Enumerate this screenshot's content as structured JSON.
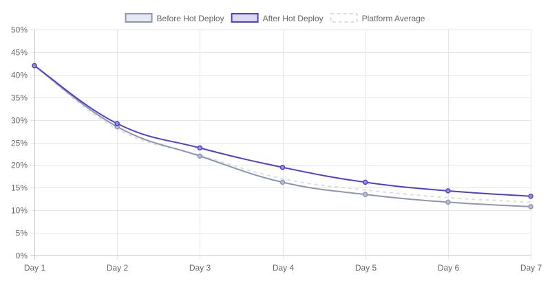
{
  "chart_data": {
    "type": "line",
    "categories": [
      "Day 1",
      "Day 2",
      "Day 3",
      "Day 4",
      "Day 5",
      "Day 6",
      "Day 7"
    ],
    "series": [
      {
        "name": "Before Hot Deploy",
        "values": [
          42,
          28.5,
          22,
          16.2,
          13.5,
          11.8,
          10.8
        ],
        "color": "#8a96b4",
        "point_fill": "#b8bfd2",
        "dashed": false,
        "show_points": true
      },
      {
        "name": "After Hot Deploy",
        "values": [
          42,
          29.2,
          23.8,
          19.5,
          16.2,
          14.3,
          13.1
        ],
        "color": "#4f3fd0",
        "point_fill": "#9c93e6",
        "dashed": false,
        "show_points": true
      },
      {
        "name": "Platform Average",
        "values": [
          42,
          28,
          22.2,
          17,
          14.5,
          12.8,
          11.8
        ],
        "color": "#dddddd",
        "point_fill": "#eeeeee",
        "dashed": true,
        "show_points": false
      }
    ],
    "y_ticks": [
      "0%",
      "5%",
      "10%",
      "15%",
      "20%",
      "25%",
      "30%",
      "35%",
      "40%",
      "45%",
      "50%"
    ],
    "ylim": [
      0,
      50
    ],
    "y_step": 5,
    "y_unit": "%",
    "grid": true,
    "legend_position": "top-center",
    "title": "",
    "xlabel": "",
    "ylabel": ""
  }
}
